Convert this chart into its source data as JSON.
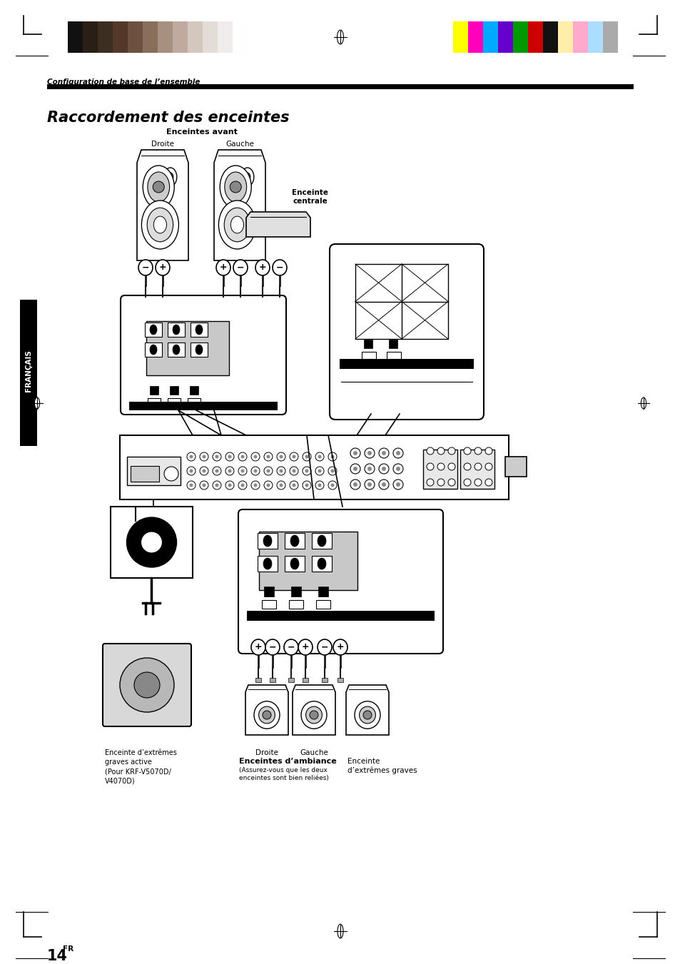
{
  "page_width": 9.54,
  "page_height": 13.51,
  "background": "#ffffff",
  "title_small": "Configuration de base de l’ensemble",
  "title_large": "Raccordement des enceintes",
  "page_number": "14",
  "page_number_suffix": "FR",
  "color_strip_grayscale": [
    "#111111",
    "#2a1f16",
    "#3d2e22",
    "#54392a",
    "#6e5040",
    "#8a6e5c",
    "#a89080",
    "#c0aaa0",
    "#d4c8be",
    "#e4dcd6",
    "#f0ecec",
    "#fefefe"
  ],
  "color_strip_colors": [
    "#ffff00",
    "#ff00bb",
    "#00aaff",
    "#6600cc",
    "#009900",
    "#cc0000",
    "#111111",
    "#ffeeaa",
    "#ffaacc",
    "#aaddff",
    "#aaaaaa"
  ],
  "label_avant": "Enceintes avant",
  "label_droite": "Droite",
  "label_gauche": "Gauche",
  "label_centrale": "Enceinte\ncentrale",
  "label_subwoofer": "Enceinte d’extrêmes\ngraves active\n(Pour KRF-V5070D/\nV4070D)",
  "label_ambiance": "Enceintes d’ambiance",
  "label_ambiance_note": "(Assurez-vous que les deux\nenceintes sont bien reliées)",
  "label_droite2": "Droite",
  "label_gauche2": "Gauche",
  "label_graves": "Enceinte\nd’extrêmes graves",
  "label_francais": "FRANÇAIS"
}
